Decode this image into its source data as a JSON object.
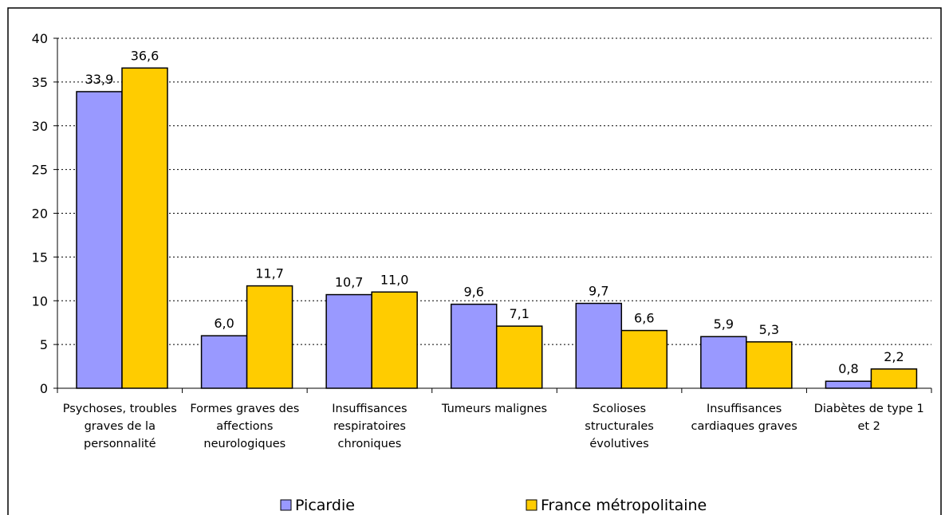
{
  "chart_data": {
    "type": "bar",
    "categories": [
      "Psychoses, troubles graves de la personnalité",
      "Formes graves des affections neurologiques",
      "Insuffisances respiratoires chroniques",
      "Tumeurs malignes",
      "Scolioses structurales évolutives",
      "Insuffisances cardiaques graves",
      "Diabètes de type 1 et 2"
    ],
    "series": [
      {
        "name": "Picardie",
        "color": "#9999ff",
        "values": [
          33.9,
          6.0,
          10.7,
          9.6,
          9.7,
          5.9,
          0.8
        ],
        "value_labels": [
          "33,9",
          "6,0",
          "10,7",
          "9,6",
          "9,7",
          "5,9",
          "0,8"
        ]
      },
      {
        "name": "France métropolitaine",
        "color": "#ffcc00",
        "values": [
          36.6,
          11.7,
          11.0,
          7.1,
          6.6,
          5.3,
          2.2
        ],
        "value_labels": [
          "36,6",
          "11,7",
          "11,0",
          "7,1",
          "6,6",
          "5,3",
          "2,2"
        ]
      }
    ],
    "ylim": [
      0,
      40
    ],
    "yticks": [
      0,
      5,
      10,
      15,
      20,
      25,
      30,
      35,
      40
    ],
    "grid": true,
    "legend": "bottom"
  }
}
